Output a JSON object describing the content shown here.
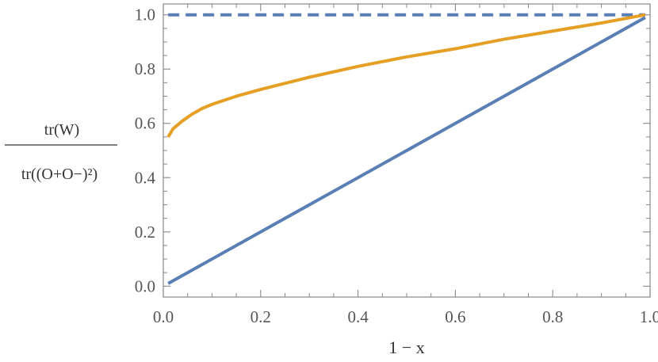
{
  "chart_data": {
    "type": "line",
    "xlabel": "1 − x",
    "ylabel": {
      "numerator": "tr(W)",
      "denominator": "tr((O+O−)²)"
    },
    "xlim": [
      0.0,
      1.0
    ],
    "ylim": [
      -0.04,
      1.04
    ],
    "x_ticks": [
      "0.0",
      "0.2",
      "0.4",
      "0.6",
      "0.8",
      "1.0"
    ],
    "y_ticks": [
      "0.0",
      "0.2",
      "0.4",
      "0.6",
      "0.8",
      "1.0"
    ],
    "grid": false,
    "series": [
      {
        "style": "dashed",
        "color": "#5a7fb5",
        "x": [
          0.01,
          0.99
        ],
        "y": [
          1.0,
          1.0
        ]
      },
      {
        "style": "solid",
        "color": "#e69f25",
        "x": [
          0.01,
          0.02,
          0.04,
          0.06,
          0.08,
          0.1,
          0.15,
          0.2,
          0.3,
          0.4,
          0.5,
          0.6,
          0.7,
          0.8,
          0.9,
          0.99
        ],
        "y": [
          0.55,
          0.58,
          0.61,
          0.635,
          0.655,
          0.67,
          0.7,
          0.725,
          0.77,
          0.81,
          0.845,
          0.875,
          0.91,
          0.94,
          0.97,
          1.0
        ]
      },
      {
        "style": "solid",
        "color": "#5a7fb5",
        "x": [
          0.01,
          0.99
        ],
        "y": [
          0.01,
          0.99
        ]
      }
    ]
  }
}
